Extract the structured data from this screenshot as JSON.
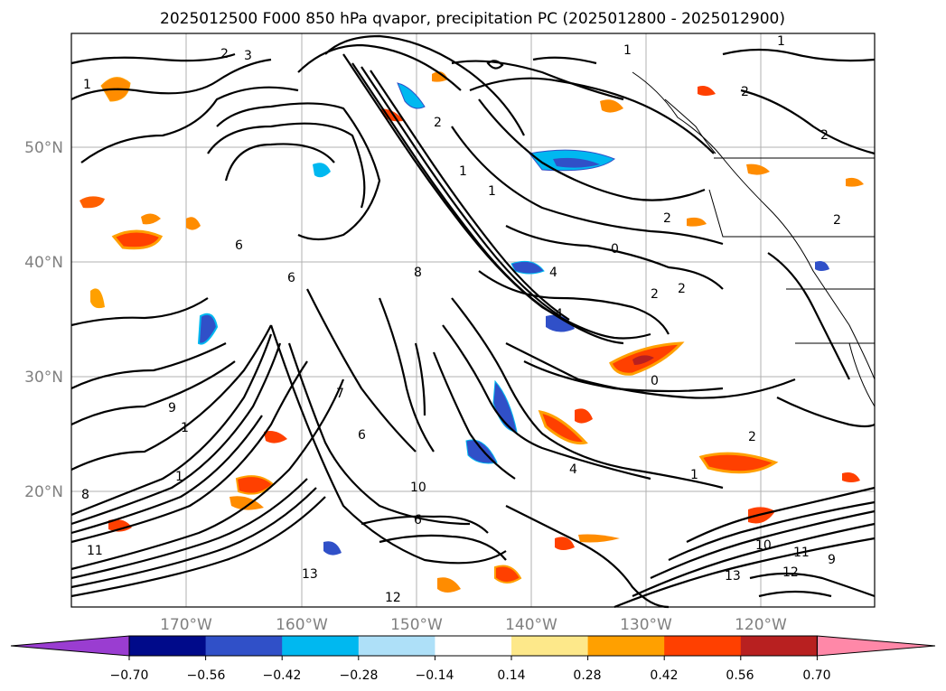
{
  "title": "2025012500 F000 850 hPa qvapor, precipitation PC (2025012800 - 2025012900)",
  "map": {
    "lon_ticks": [
      "170°W",
      "160°W",
      "150°W",
      "140°W",
      "130°W",
      "120°W"
    ],
    "lat_ticks": [
      "50°N",
      "40°N",
      "30°N",
      "20°N"
    ],
    "gridlines": true,
    "contour_labels": [
      "2",
      "3",
      "1",
      "1",
      "2",
      "1",
      "1",
      "1",
      "2",
      "2",
      "2",
      "0",
      "2",
      "4",
      "6",
      "8",
      "6",
      "4",
      "2",
      "1",
      "0",
      "4",
      "1",
      "6",
      "9",
      "11",
      "10",
      "13",
      "12",
      "12",
      "11",
      "13",
      "9",
      "8",
      "7",
      "10",
      "6",
      "1",
      "2",
      "2"
    ]
  },
  "colorbar": {
    "tick_labels": [
      "−0.70",
      "−0.56",
      "−0.42",
      "−0.28",
      "−0.14",
      "0.14",
      "0.28",
      "0.42",
      "0.56",
      "0.70"
    ],
    "colors": [
      "#9a3dd1",
      "#000a8a",
      "#3050c8",
      "#00b8f0",
      "#aee0f8",
      "#ffffff",
      "#fde88a",
      "#ffa000",
      "#ff4000",
      "#b82020",
      "#ff88a8"
    ],
    "extend": "both"
  }
}
